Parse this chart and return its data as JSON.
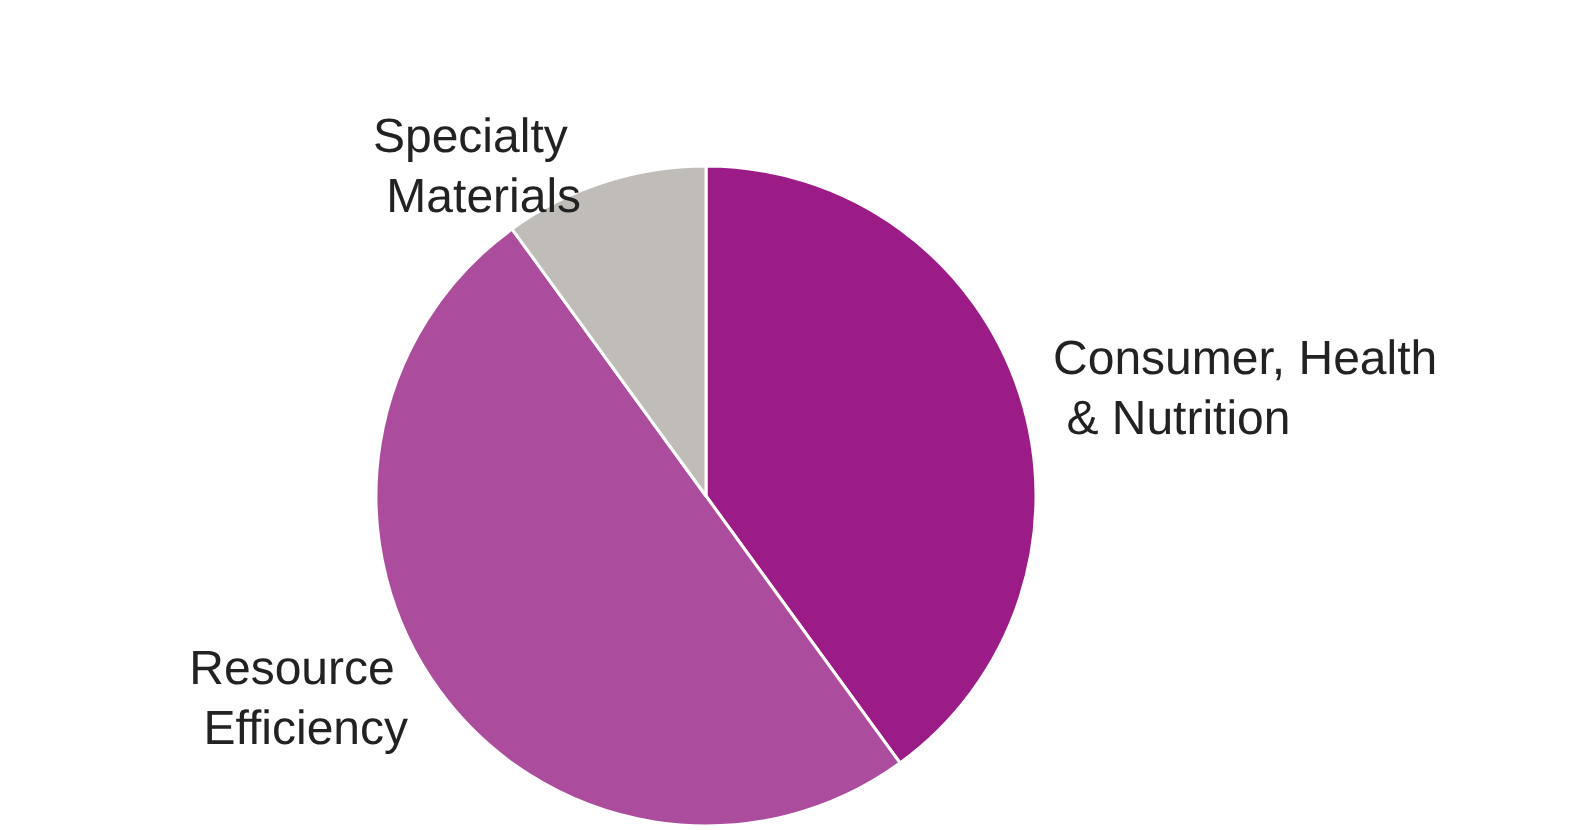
{
  "chart_data": {
    "type": "pie",
    "categories": [
      "Consumer, Health & Nutrition",
      "Resource Efficiency",
      "Specialty Materials"
    ],
    "values": [
      40,
      50,
      10
    ],
    "colors": [
      "#9c1c87",
      "#ab4c9c",
      "#c0bdb8"
    ],
    "legend": false
  }
}
